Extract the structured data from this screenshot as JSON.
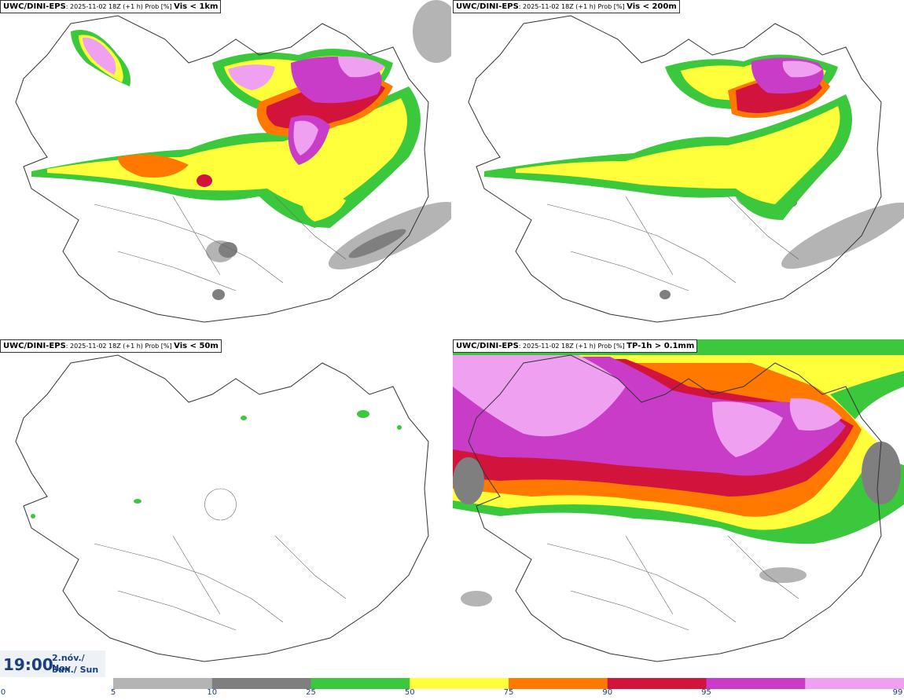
{
  "panels": [
    {
      "model": "UWC/DINI-EPS",
      "run": "2025-11-02 18Z (+1 h) Prob [%]",
      "variable": "Vis < 1km"
    },
    {
      "model": "UWC/DINI-EPS",
      "run": "2025-11-02 18Z (+1 h) Prob [%]",
      "variable": "Vis < 200m"
    },
    {
      "model": "UWC/DINI-EPS",
      "run": "2025-11-02 18Z (+1 h) Prob [%]",
      "variable": "Vis < 50m"
    },
    {
      "model": "UWC/DINI-EPS",
      "run": "2025-11-02 18Z (+1 h) Prob [%]",
      "variable": "TP-1h > 0.1mm"
    }
  ],
  "valid_time": {
    "time": "19:00",
    "date_line1": "2.nóv./ Nov",
    "date_line2": "Sun./ Sun"
  },
  "colorbar": {
    "ticks": [
      "0",
      "5",
      "10",
      "25",
      "50",
      "75",
      "90",
      "95",
      "99"
    ],
    "colors": [
      "#b4b4b4",
      "#7f7f7f",
      "#3cc83c",
      "#ffff3c",
      "#ff7800",
      "#d2143c",
      "#c83cc8",
      "#f0a0f0"
    ]
  }
}
